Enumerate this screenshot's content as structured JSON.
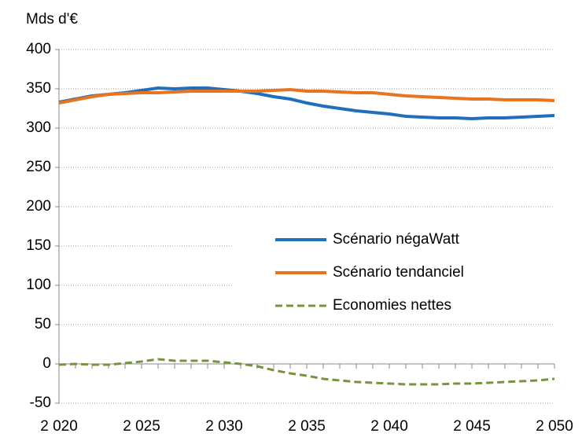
{
  "chart_data": {
    "type": "line",
    "y_label": "Mds d'€",
    "x": [
      2020,
      2021,
      2022,
      2023,
      2024,
      2025,
      2026,
      2027,
      2028,
      2029,
      2030,
      2031,
      2032,
      2033,
      2034,
      2035,
      2036,
      2037,
      2038,
      2039,
      2040,
      2041,
      2042,
      2043,
      2044,
      2045,
      2046,
      2047,
      2048,
      2049,
      2050
    ],
    "series": [
      {
        "name": "Scénario négaWatt",
        "color": "#1f6fbf",
        "dash": false,
        "values": [
          333,
          337,
          341,
          343,
          345,
          348,
          351,
          350,
          351,
          351,
          349,
          347,
          344,
          340,
          337,
          332,
          328,
          325,
          322,
          320,
          318,
          315,
          314,
          313,
          313,
          312,
          313,
          313,
          314,
          315,
          316
        ]
      },
      {
        "name": "Scénario tendanciel",
        "color": "#e8741e",
        "dash": false,
        "values": [
          332,
          336,
          340,
          343,
          344,
          345,
          345,
          346,
          347,
          347,
          347,
          347,
          347,
          348,
          349,
          347,
          347,
          346,
          345,
          345,
          343,
          341,
          340,
          339,
          338,
          337,
          337,
          336,
          336,
          336,
          335
        ]
      },
      {
        "name": "Economies nettes",
        "color": "#77933c",
        "dash": true,
        "values": [
          -1,
          0,
          -1,
          -1,
          1,
          3,
          6,
          4,
          4,
          4,
          2,
          0,
          -3,
          -8,
          -12,
          -15,
          -19,
          -21,
          -23,
          -24,
          -25,
          -26,
          -26,
          -26,
          -25,
          -25,
          -24,
          -23,
          -22,
          -21,
          -19
        ]
      }
    ],
    "xlim": [
      2020,
      2050
    ],
    "xticks": [
      {
        "value": 2020,
        "label": "2 020"
      },
      {
        "value": 2025,
        "label": "2 025"
      },
      {
        "value": 2030,
        "label": "2 030"
      },
      {
        "value": 2035,
        "label": "2 035"
      },
      {
        "value": 2040,
        "label": "2 040"
      },
      {
        "value": 2045,
        "label": "2 045"
      },
      {
        "value": 2050,
        "label": "2 050"
      }
    ],
    "ylim": [
      -50,
      400
    ],
    "yticks": [
      -50,
      0,
      50,
      100,
      150,
      200,
      250,
      300,
      350,
      400
    ],
    "grid": true,
    "legend": "right"
  }
}
